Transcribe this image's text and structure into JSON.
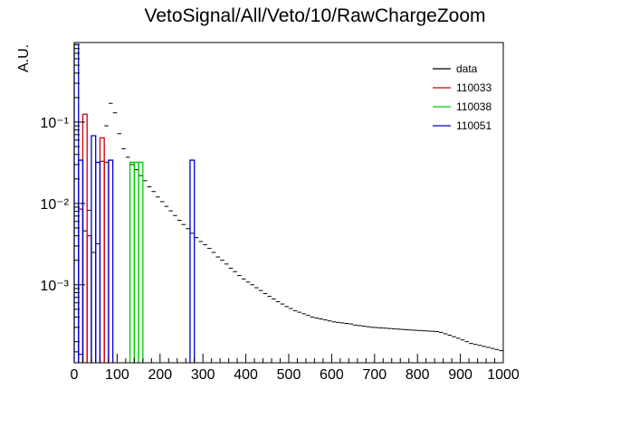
{
  "chart_data": {
    "type": "histogram",
    "title": "VetoSignal/All/Veto/10/RawChargeZoom",
    "xlabel": "",
    "ylabel": "A.U.",
    "x_scale": "linear",
    "y_scale": "log",
    "xlim": [
      0,
      1000
    ],
    "ylim": [
      0.00011,
      0.95
    ],
    "x_ticks": [
      0,
      100,
      200,
      300,
      400,
      500,
      600,
      700,
      800,
      900,
      1000
    ],
    "x_tick_labels": [
      "0",
      "100",
      "200",
      "300",
      "400",
      "500",
      "600",
      "700",
      "800",
      "900",
      "1000"
    ],
    "y_ticks": [
      0.001,
      0.01,
      0.1
    ],
    "y_tick_labels": [
      "10⁻³",
      "10⁻²",
      "10⁻¹"
    ],
    "grid": false,
    "legend_position": "top-right",
    "legend": [
      "data",
      "110033",
      "110038",
      "110051"
    ],
    "colors": {
      "data": "#000000",
      "110033": "#cc0000",
      "110038": "#00cc00",
      "110051": "#0000cc"
    },
    "series": [
      {
        "name": "data",
        "style": "markers",
        "bin_width": 10,
        "x": [
          5,
          15,
          25,
          35,
          45,
          55,
          65,
          75,
          85,
          95,
          105,
          115,
          125,
          135,
          145,
          155,
          165,
          175,
          185,
          195,
          205,
          215,
          225,
          235,
          245,
          255,
          265,
          275,
          285,
          295,
          305,
          315,
          325,
          335,
          345,
          355,
          365,
          375,
          385,
          395,
          405,
          415,
          425,
          435,
          445,
          455,
          465,
          475,
          485,
          495,
          505,
          515,
          525,
          535,
          545,
          555,
          565,
          575,
          585,
          595,
          605,
          615,
          625,
          635,
          645,
          655,
          665,
          675,
          685,
          695,
          705,
          715,
          725,
          735,
          745,
          755,
          765,
          775,
          785,
          795,
          805,
          815,
          825,
          835,
          845,
          855,
          865,
          875,
          885,
          895,
          905,
          915,
          925,
          935,
          945,
          955,
          965,
          975,
          985,
          995
        ],
        "y": [
          0.00015,
          0.00014,
          0.0046,
          0.0082,
          0.0025,
          0.0032,
          0.033,
          0.09,
          0.17,
          0.13,
          0.072,
          0.047,
          0.037,
          0.03,
          0.026,
          0.022,
          0.019,
          0.016,
          0.014,
          0.012,
          0.0105,
          0.0092,
          0.0081,
          0.0071,
          0.0062,
          0.0055,
          0.0049,
          0.0043,
          0.0038,
          0.0034,
          0.0031,
          0.0028,
          0.0025,
          0.0022,
          0.002,
          0.0018,
          0.0016,
          0.00145,
          0.0013,
          0.00118,
          0.00108,
          0.001,
          0.00092,
          0.00085,
          0.00078,
          0.00072,
          0.00067,
          0.00062,
          0.00058,
          0.00054,
          0.00051,
          0.00048,
          0.00046,
          0.00044,
          0.00042,
          0.0004,
          0.00039,
          0.00038,
          0.00037,
          0.00036,
          0.00035,
          0.000345,
          0.00034,
          0.000335,
          0.00033,
          0.00032,
          0.000315,
          0.00031,
          0.000305,
          0.0003,
          0.000298,
          0.000295,
          0.000293,
          0.00029,
          0.000288,
          0.000285,
          0.000283,
          0.00028,
          0.000278,
          0.000276,
          0.000274,
          0.000272,
          0.00027,
          0.000268,
          0.000266,
          0.00026,
          0.00025,
          0.00024,
          0.00023,
          0.00022,
          0.00021,
          0.0002,
          0.00019,
          0.000185,
          0.00018,
          0.000175,
          0.00017,
          0.000165,
          0.00016,
          0.000155
        ]
      },
      {
        "name": "110033",
        "style": "step",
        "bin_width": 10,
        "bins": [
          [
            10,
            20,
            0.0085
          ],
          [
            20,
            30,
            0.125
          ],
          [
            30,
            40,
            0.004
          ],
          [
            60,
            70,
            0.064
          ],
          [
            70,
            80,
            0.032
          ]
        ]
      },
      {
        "name": "110038",
        "style": "step",
        "bin_width": 10,
        "bins": [
          [
            130,
            140,
            0.032
          ],
          [
            140,
            150,
            0.032
          ],
          [
            150,
            160,
            0.032
          ]
        ]
      },
      {
        "name": "110051",
        "style": "step",
        "bin_width": 10,
        "bins": [
          [
            0,
            10,
            0.9
          ],
          [
            10,
            20,
            0.034
          ],
          [
            40,
            50,
            0.068
          ],
          [
            50,
            60,
            0.032
          ],
          [
            80,
            90,
            0.034
          ],
          [
            270,
            280,
            0.034
          ]
        ]
      }
    ]
  }
}
